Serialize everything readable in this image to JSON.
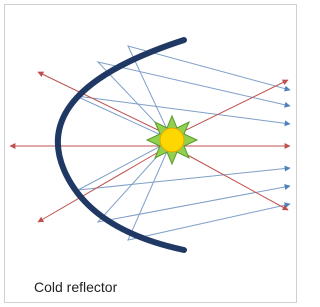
{
  "caption": "Cold reflector"
}
